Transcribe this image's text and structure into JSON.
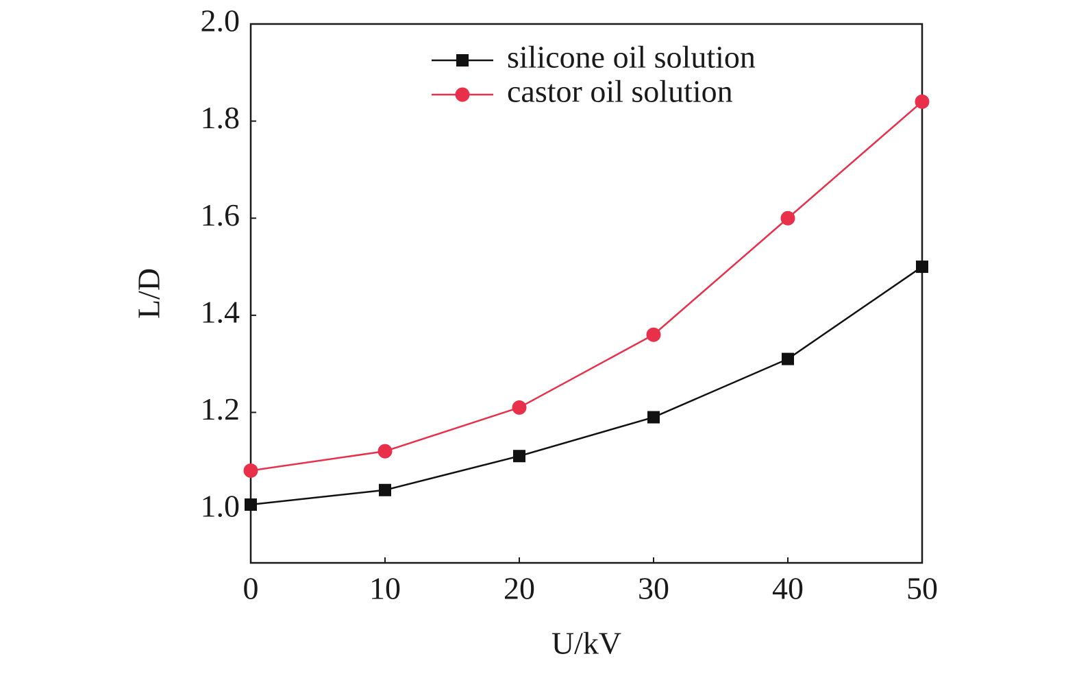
{
  "chart_data": {
    "type": "line",
    "x_label": "U/kV",
    "y_label": "L/D",
    "x": [
      0,
      10,
      20,
      30,
      40,
      50
    ],
    "series": [
      {
        "name": "silicone oil solution",
        "color": "#111111",
        "marker": "square",
        "values": [
          1.01,
          1.04,
          1.11,
          1.19,
          1.31,
          1.5
        ]
      },
      {
        "name": "castor oil solution",
        "color": "#e8304a",
        "marker": "circle",
        "values": [
          1.08,
          1.12,
          1.21,
          1.36,
          1.6,
          1.84
        ]
      }
    ],
    "xlim": [
      0,
      50
    ],
    "xticks": [
      0,
      10,
      20,
      30,
      40,
      50
    ],
    "ylim": [
      0.89,
      2.0
    ],
    "yticks": [
      {
        "value": 1.0,
        "label": "1.0"
      },
      1.2,
      1.4,
      1.6,
      1.8,
      {
        "value": 2.0,
        "label": "2.0"
      }
    ],
    "grid": false,
    "legend": "upper center"
  }
}
